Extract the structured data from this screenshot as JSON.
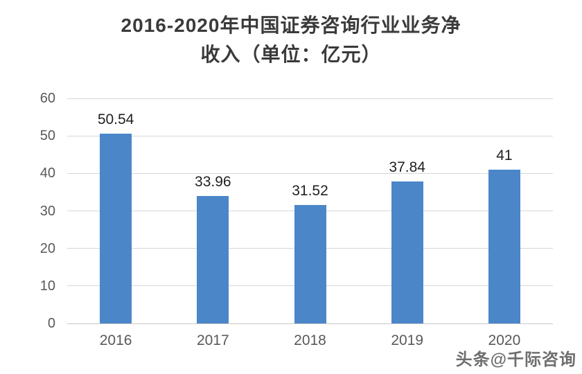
{
  "chart": {
    "title_lines": [
      "2016-2020年中国证券咨询行业业务净",
      "收入（单位：亿元）"
    ]
  },
  "chart_data": {
    "type": "bar",
    "title": "2016-2020年中国证券咨询行业业务净收入（单位：亿元）",
    "categories": [
      "2016",
      "2017",
      "2018",
      "2019",
      "2020"
    ],
    "values": [
      50.54,
      33.96,
      31.52,
      37.84,
      41
    ],
    "value_labels": [
      "50.54",
      "33.96",
      "31.52",
      "37.84",
      "41"
    ],
    "xlabel": "",
    "ylabel": "",
    "unit": "亿元",
    "ylim": [
      0,
      60
    ],
    "yticks": [
      0,
      10,
      20,
      30,
      40,
      50,
      60
    ],
    "grid": true,
    "legend_position": "none",
    "bar_color": "#4a86c8",
    "gridline_color": "#d6d6d6",
    "tick_color": "#595959",
    "value_label_color": "#1f1f1f",
    "title_color": "#3a3a3a"
  },
  "watermark": {
    "text": "头条@千际咨询"
  }
}
